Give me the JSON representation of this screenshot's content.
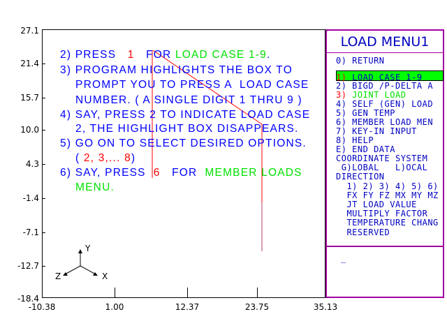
{
  "plot": {
    "y_ticks": [
      "27.1",
      "21.4",
      "15.7",
      "10.0",
      "4.3",
      "-1.4",
      "-7.1",
      "-12.7",
      "-18.4"
    ],
    "x_ticks": [
      "-10.38",
      "1.00",
      "12.37",
      "23.75",
      "35.13"
    ],
    "axes": {
      "x": "X",
      "y": "Y",
      "z": "Z"
    }
  },
  "instructions": [
    [
      {
        "t": "2) PRESS  ",
        "c": ""
      },
      {
        "t": " 1 ",
        "c": "r"
      },
      {
        "t": "  FOR ",
        "c": ""
      },
      {
        "t": "LOAD CASE 1-9",
        "c": "g"
      },
      {
        "t": ".",
        "c": ""
      }
    ],
    [
      {
        "t": "3) PROGRAM HIGHLIGHTS THE BOX TO",
        "c": ""
      }
    ],
    [
      {
        "t": "    PROMPT YOU TO PRESS A  LOAD CASE",
        "c": ""
      }
    ],
    [
      {
        "t": "    NUMBER. ( A SINGLE DIGIT 1 THRU 9 )",
        "c": ""
      }
    ],
    [
      {
        "t": "4) SAY, PRESS 2 TO INDICATE LOAD CASE",
        "c": ""
      }
    ],
    [
      {
        "t": "    2, THE HIGHLIGHT BOX DISAPPEARS.",
        "c": ""
      }
    ],
    [
      {
        "t": "5) GO ON TO SELECT DESIRED OPTIONS.",
        "c": ""
      }
    ],
    [
      {
        "t": "    ( ",
        "c": ""
      },
      {
        "t": "2, 3,... 8",
        "c": "r"
      },
      {
        "t": ")",
        "c": ""
      }
    ],
    [
      {
        "t": "6) SAY, PRESS ",
        "c": ""
      },
      {
        "t": " 6 ",
        "c": "r"
      },
      {
        "t": "  FOR  ",
        "c": ""
      },
      {
        "t": "MEMBER LOADS",
        "c": "g"
      }
    ],
    [
      {
        "t": "    MENU.",
        "c": "g"
      }
    ]
  ],
  "menu": {
    "title": "LOAD MENU1",
    "items": [
      "0) RETURN",
      "1) LOAD CASE 1-9",
      "2) BIGD /P-DELTA A",
      "3) JOINT LOAD",
      "4) SELF (GEN) LOAD",
      "5) GEN TEMP",
      "6) MEMBER LOAD MEN",
      "7) KEY-IN INPUT",
      "8) HELP",
      "E) END DATA"
    ],
    "info": [
      "COORDINATE SYSTEM",
      " G)LOBAL   L)OCAL",
      "DIRECTION",
      "  1) 2) 3) 4) 5) 6)",
      "  FX FY FZ MX MY MZ",
      "  JT LOAD VALUE",
      "  MULTIPLY FACTOR",
      "  TEMPERATURE CHANG",
      "  RESERVED"
    ],
    "prompt": "_",
    "highlight_color": "#00ff00"
  }
}
